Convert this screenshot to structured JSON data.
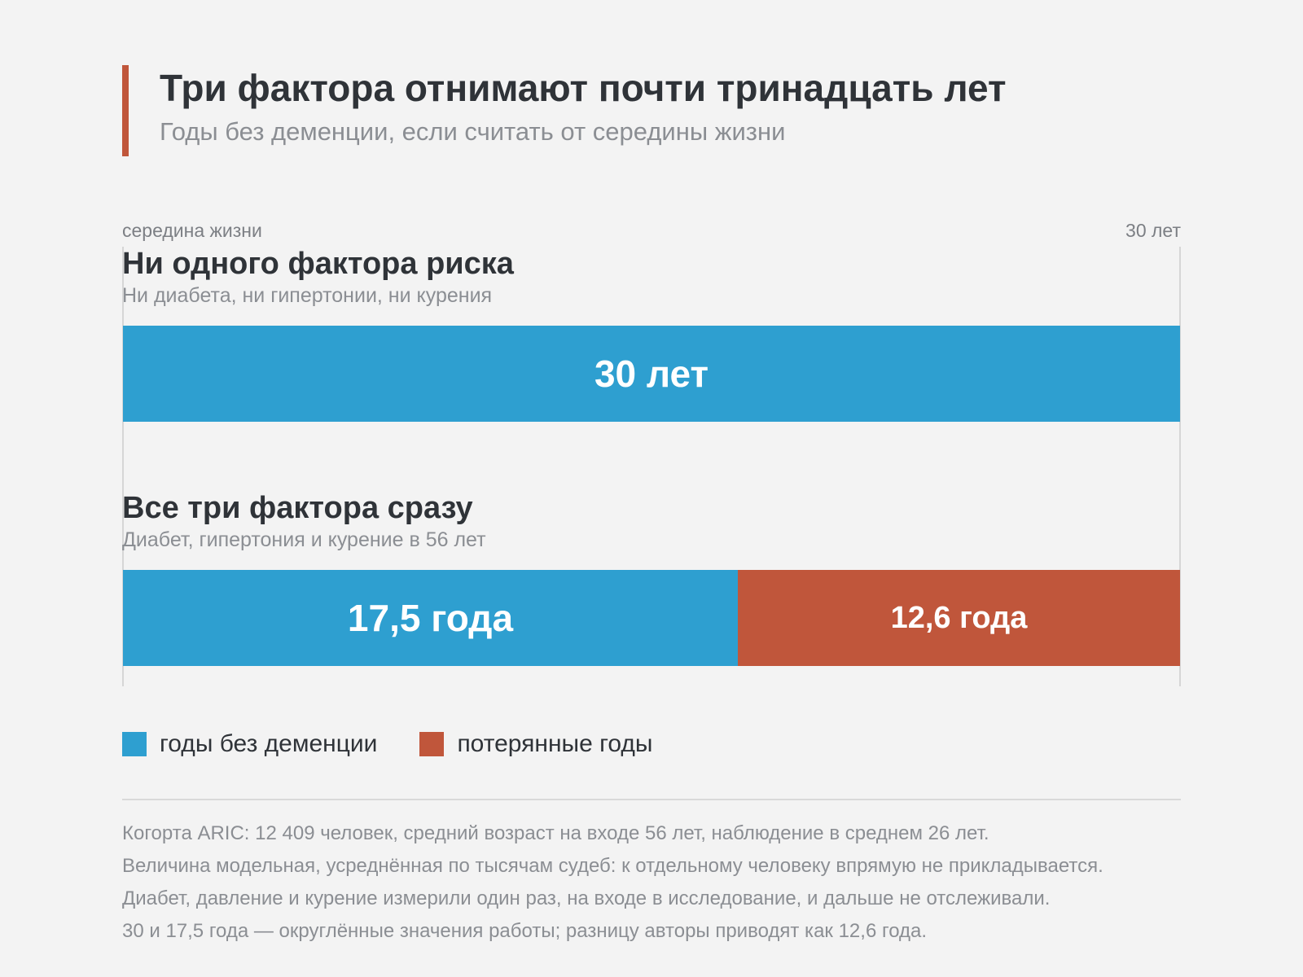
{
  "header": {
    "title": "Три фактора отнимают почти тринадцать лет",
    "subtitle": "Годы без деменции, если считать от середины жизни"
  },
  "axis": {
    "start_label": "середина жизни",
    "end_label": "30 лет"
  },
  "colors": {
    "dementia_free": "#2e9fd0",
    "lost": "#c0563b",
    "accent": "#c0563b"
  },
  "chart_data": {
    "type": "bar",
    "orientation": "horizontal",
    "stacked": true,
    "xlim": [
      0,
      30
    ],
    "categories": [
      {
        "title": "Ни одного фактора риска",
        "subtitle": "Ни диабета, ни гипертонии, ни курения"
      },
      {
        "title": "Все три фактора сразу",
        "subtitle": "Диабет, гипертония и курение в 56 лет"
      }
    ],
    "series": [
      {
        "name": "годы без деменции",
        "values": [
          30,
          17.5
        ],
        "labels": [
          "30 лет",
          "17,5 года"
        ]
      },
      {
        "name": "потерянные годы",
        "values": [
          0,
          12.6
        ],
        "labels": [
          "",
          "12,6 года"
        ]
      }
    ],
    "legend_position": "bottom-left"
  },
  "notes": [
    "Когорта ARIC: 12 409 человек, средний возраст на входе 56 лет, наблюдение в среднем 26 лет.",
    "Величина модельная, усреднённая по тысячам судеб: к отдельному человеку впрямую не прикладывается.",
    "Диабет, давление и курение измерили один раз, на входе в исследование, и дальше не отслеживали.",
    "30 и 17,5 года — округлённые значения работы; разницу авторы приводят как 12,6 года."
  ]
}
